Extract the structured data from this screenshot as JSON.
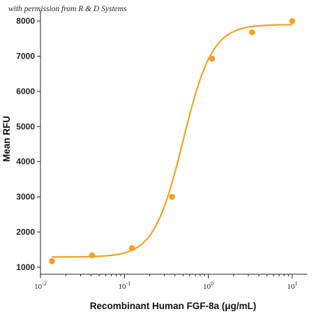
{
  "watermark": "with permission from R & D Systems",
  "colors": {
    "series": "#F5A025",
    "axis": "#222222"
  },
  "chart_data": {
    "type": "scatter",
    "title": "",
    "xlabel": "Recombinant Human FGF-8a (μg/mL)",
    "ylabel": "Mean RFU",
    "xscale": "log",
    "xlim": [
      0.01,
      15
    ],
    "ylim": [
      800,
      8300
    ],
    "xticks": [
      {
        "value": 0.01,
        "base": "10",
        "exp": "-2"
      },
      {
        "value": 0.1,
        "base": "10",
        "exp": "-1"
      },
      {
        "value": 1,
        "base": "10",
        "exp": "0"
      },
      {
        "value": 10,
        "base": "10",
        "exp": "1"
      }
    ],
    "yticks": [
      1000,
      2000,
      3000,
      4000,
      5000,
      6000,
      7000,
      8000
    ],
    "grid": false,
    "points": {
      "x": [
        0.0137,
        0.0412,
        0.123,
        0.37,
        1.11,
        3.33,
        10.0
      ],
      "y": [
        1170,
        1340,
        1540,
        3000,
        6930,
        7680,
        8000
      ]
    },
    "fit_curve": {
      "model": "4PL",
      "bottom": 1290,
      "top": 7900,
      "ec50": 0.5,
      "hill": 2.5
    }
  }
}
